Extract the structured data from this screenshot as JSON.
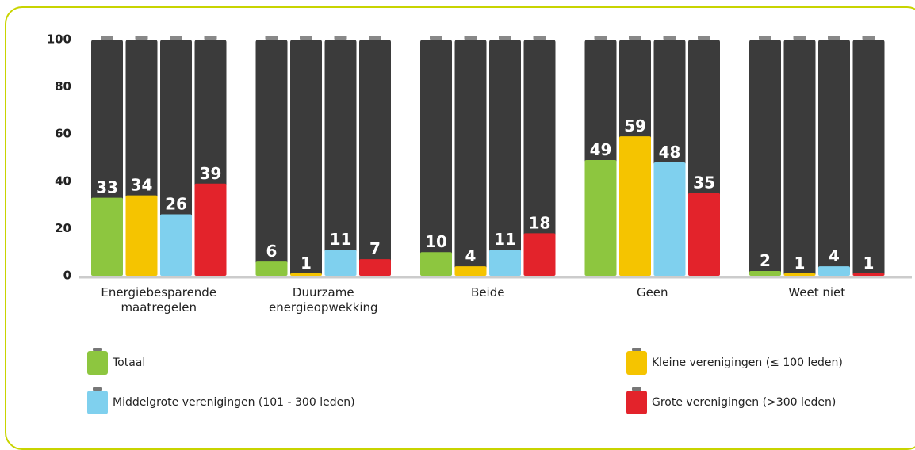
{
  "chart_data": {
    "type": "bar",
    "categories": [
      "Energiebesparende maatregelen",
      "Duurzame energieopwekking",
      "Beide",
      "Geen",
      "Weet niet"
    ],
    "series": [
      {
        "name": "Totaal",
        "color": "#8dc63f",
        "values": [
          33,
          6,
          10,
          49,
          2
        ]
      },
      {
        "name": "Kleine verenigingen (≤ 100 leden)",
        "color": "#f5c400",
        "values": [
          34,
          1,
          4,
          59,
          1
        ]
      },
      {
        "name": "Middelgrote verenigingen (101 - 300 leden)",
        "color": "#7fd0ee",
        "values": [
          26,
          11,
          11,
          48,
          4
        ]
      },
      {
        "name": "Grote verenigingen (>300 leden)",
        "color": "#e3232b",
        "values": [
          39,
          7,
          18,
          35,
          1
        ]
      }
    ],
    "ylim": [
      0,
      100
    ],
    "yticks": [
      0,
      20,
      40,
      60,
      80,
      100
    ]
  }
}
